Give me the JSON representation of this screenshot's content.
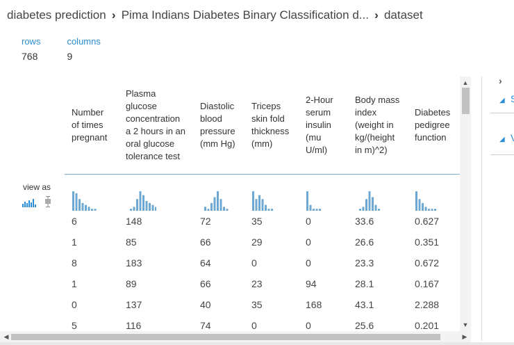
{
  "breadcrumb": [
    "diabetes prediction",
    "Pima Indians Diabetes Binary Classification d...",
    "dataset"
  ],
  "breadcrumb_separator": "›",
  "stats": {
    "rows_label": "rows",
    "rows_value": "768",
    "columns_label": "columns",
    "columns_value": "9"
  },
  "view_as_label": "view as",
  "columns": [
    "Number of times pregnant",
    "Plasma glucose concentration a 2 hours in an oral glucose tolerance test",
    "Diastolic blood pressure (mm Hg)",
    "Triceps skin fold thickness (mm)",
    "2-Hour serum insulin (mu U/ml)",
    "Body mass index (weight in kg/(height in m)^2)",
    "Diabetes pedigree function"
  ],
  "rows": [
    [
      "6",
      "148",
      "72",
      "35",
      "0",
      "33.6",
      "0.627"
    ],
    [
      "1",
      "85",
      "66",
      "29",
      "0",
      "26.6",
      "0.351"
    ],
    [
      "8",
      "183",
      "64",
      "0",
      "0",
      "23.3",
      "0.672"
    ],
    [
      "1",
      "89",
      "66",
      "23",
      "94",
      "28.1",
      "0.167"
    ],
    [
      "0",
      "137",
      "40",
      "35",
      "168",
      "43.1",
      "2.288"
    ],
    [
      "5",
      "116",
      "74",
      "0",
      "0",
      "25.6",
      "0.201"
    ]
  ],
  "histograms": [
    [
      10,
      9,
      6,
      4,
      3,
      2,
      1,
      1
    ],
    [
      1,
      2,
      6,
      10,
      8,
      5,
      4,
      3,
      2
    ],
    [
      2,
      1,
      4,
      7,
      10,
      6,
      2,
      1
    ],
    [
      10,
      6,
      8,
      6,
      3,
      1,
      1
    ],
    [
      10,
      3,
      1,
      1,
      1
    ],
    [
      1,
      2,
      6,
      10,
      7,
      3,
      1
    ],
    [
      10,
      6,
      4,
      2,
      1,
      1,
      1
    ]
  ],
  "colors": {
    "accent": "#2a8dd4",
    "histogram_bar": "#6ca8d1"
  },
  "icons": [
    "histogram-view-icon",
    "boxplot-view-icon",
    "scroll-up-icon",
    "scroll-down-icon",
    "scroll-left-icon",
    "scroll-right-icon",
    "panel-chevron-icon",
    "section-collapse-icon"
  ],
  "right_panel": {
    "chevron": "›",
    "section_1_initial": "S",
    "section_2_initial": "V"
  }
}
